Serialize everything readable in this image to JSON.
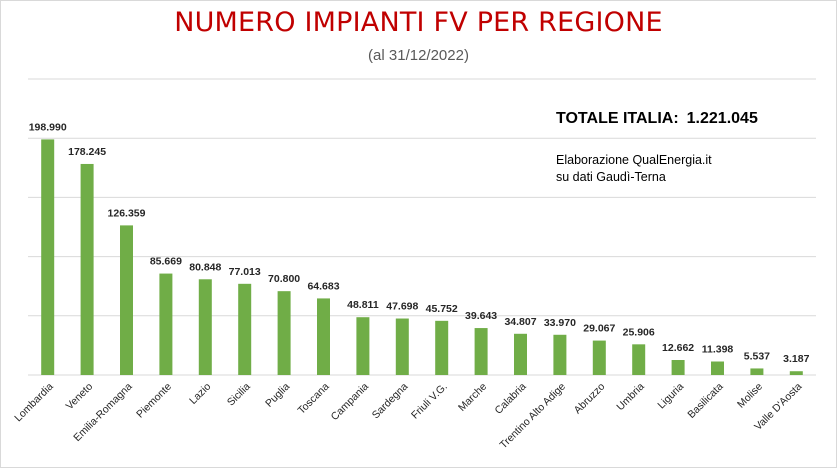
{
  "header": {
    "title": "NUMERO IMPIANTI FV PER REGIONE",
    "subtitle": "(al 31/12/2022)"
  },
  "notes": {
    "total_label": "TOTALE ITALIA:",
    "total_value": "1.221.045",
    "source_line1": "Elaborazione QualEnergia.it",
    "source_line2": "su dati Gaudì-Terna"
  },
  "colors": {
    "title": "#c00000",
    "bar": "#70ad47",
    "gridline": "#d9d9d9"
  },
  "chart_data": {
    "type": "bar",
    "title": "NUMERO IMPIANTI FV PER REGIONE",
    "subtitle": "(al 31/12/2022)",
    "xlabel": "",
    "ylabel": "",
    "ylim": [
      0,
      250000
    ],
    "grid": true,
    "y_axis_labels_shown": false,
    "categories": [
      "Lombardia",
      "Veneto",
      "Emilia-Romagna",
      "Piemonte",
      "Lazio",
      "Sicilia",
      "Puglia",
      "Toscana",
      "Campania",
      "Sardegna",
      "Friuli V.G.",
      "Marche",
      "Calabria",
      "Trentino Alto Adige",
      "Abruzzo",
      "Umbria",
      "Liguria",
      "Basilicata",
      "Molise",
      "Valle D'Aosta"
    ],
    "values": [
      198990,
      178245,
      126359,
      85669,
      80848,
      77013,
      70800,
      64683,
      48811,
      47698,
      45752,
      39643,
      34807,
      33970,
      29067,
      25906,
      12662,
      11398,
      5537,
      3187
    ],
    "value_labels": [
      "198.990",
      "178.245",
      "126.359",
      "85.669",
      "80.848",
      "77.013",
      "70.800",
      "64.683",
      "48.811",
      "47.698",
      "45.752",
      "39.643",
      "34.807",
      "33.970",
      "29.067",
      "25.906",
      "12.662",
      "11.398",
      "5.537",
      "3.187"
    ]
  }
}
